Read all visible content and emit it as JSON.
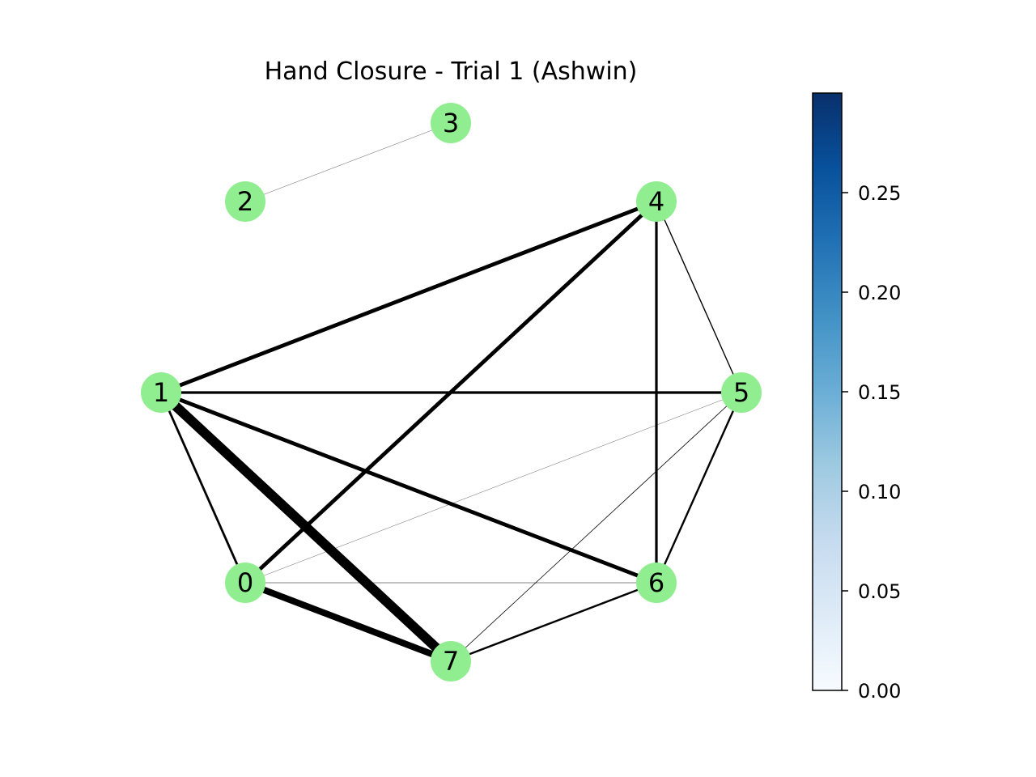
{
  "title": "Hand Closure - Trial 1 (Ashwin)",
  "node_color": "#90ee90",
  "edge_color": "#000000",
  "nodes": [
    {
      "id": "0",
      "label": "0"
    },
    {
      "id": "1",
      "label": "1"
    },
    {
      "id": "2",
      "label": "2"
    },
    {
      "id": "3",
      "label": "3"
    },
    {
      "id": "4",
      "label": "4"
    },
    {
      "id": "5",
      "label": "5"
    },
    {
      "id": "6",
      "label": "6"
    },
    {
      "id": "7",
      "label": "7"
    }
  ],
  "edges": [
    {
      "source": "1",
      "target": "7",
      "weight": 0.3
    },
    {
      "source": "0",
      "target": "7",
      "weight": 0.2
    },
    {
      "source": "1",
      "target": "4",
      "weight": 0.12
    },
    {
      "source": "0",
      "target": "4",
      "weight": 0.12
    },
    {
      "source": "1",
      "target": "6",
      "weight": 0.12
    },
    {
      "source": "1",
      "target": "5",
      "weight": 0.08
    },
    {
      "source": "4",
      "target": "6",
      "weight": 0.08
    },
    {
      "source": "1",
      "target": "0",
      "weight": 0.07
    },
    {
      "source": "5",
      "target": "6",
      "weight": 0.06
    },
    {
      "source": "6",
      "target": "7",
      "weight": 0.06
    },
    {
      "source": "4",
      "target": "5",
      "weight": 0.035
    },
    {
      "source": "5",
      "target": "7",
      "weight": 0.02
    },
    {
      "source": "0",
      "target": "6",
      "weight": 0.012
    },
    {
      "source": "2",
      "target": "3",
      "weight": 0.008
    },
    {
      "source": "0",
      "target": "5",
      "weight": 0.004
    }
  ],
  "colorbar": {
    "colormap": "Blues",
    "min": 0.0,
    "max": 0.3,
    "ticks": [
      {
        "value": 0.0,
        "label": "0.00"
      },
      {
        "value": 0.05,
        "label": "0.05"
      },
      {
        "value": 0.1,
        "label": "0.10"
      },
      {
        "value": 0.15,
        "label": "0.15"
      },
      {
        "value": 0.2,
        "label": "0.20"
      },
      {
        "value": 0.25,
        "label": "0.25"
      }
    ],
    "color_low": "#f7fbff",
    "color_mid": "#6baed6",
    "color_high": "#08306b"
  }
}
